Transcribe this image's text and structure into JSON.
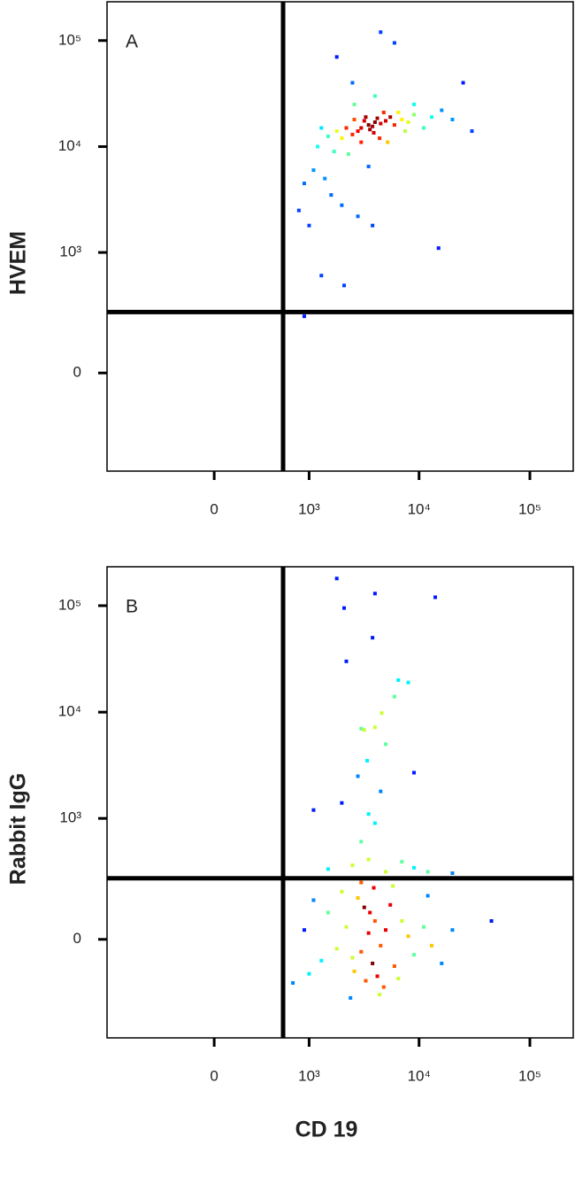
{
  "chart_data": [
    {
      "type": "scatter",
      "panel_label": "A",
      "ylabel": "HVEM",
      "colormap": "jet",
      "xlim": [
        -1300,
        246000
      ],
      "ylim": [
        -610,
        232000
      ],
      "xticks": [
        0,
        {
          "value": 1000,
          "label": "10³"
        },
        {
          "value": 10000,
          "label": "10⁴"
        },
        {
          "value": 100000,
          "label": "10⁵"
        }
      ],
      "yticks": [
        0,
        {
          "value": 1000,
          "label": "10³"
        },
        {
          "value": 10000,
          "label": "10⁴"
        },
        {
          "value": 100000,
          "label": "10⁵"
        }
      ],
      "gate": {
        "x": 560,
        "y": 256
      },
      "x": [
        3500,
        3000,
        4000,
        3800,
        3200,
        4500,
        2800,
        4200,
        3600,
        5000,
        2500,
        3300,
        5500,
        2200,
        6000,
        2000,
        4800,
        3900,
        2600,
        7000,
        1800,
        6500,
        1500,
        8000,
        1300,
        3000,
        4400,
        9000,
        11000,
        13000,
        1700,
        2300,
        1200,
        5200,
        7500,
        16000,
        20000,
        1100,
        1400,
        1600,
        2000,
        900,
        800,
        2800,
        3800,
        1000,
        4000,
        2500,
        6000,
        4500,
        1800,
        9000,
        15000,
        1300,
        2100,
        900,
        25000,
        30000,
        2600,
        3500
      ],
      "y": [
        16000,
        15000,
        17000,
        15500,
        17500,
        16500,
        14000,
        18500,
        14500,
        17500,
        13000,
        19000,
        19000,
        15000,
        16000,
        12000,
        21000,
        13500,
        18000,
        18000,
        14000,
        21000,
        12500,
        17000,
        15000,
        11000,
        12000,
        20000,
        15000,
        19000,
        9000,
        8500,
        10000,
        11000,
        14000,
        22000,
        18000,
        6000,
        5000,
        3500,
        2800,
        4500,
        2500,
        2200,
        1800,
        1800,
        30000,
        40000,
        95000,
        120000,
        70000,
        25000,
        1100,
        600,
        480,
        230,
        40000,
        14000,
        25000,
        6500
      ]
    },
    {
      "type": "scatter",
      "panel_label": "B",
      "ylabel": "Rabbit IgG",
      "xlabel": "CD 19",
      "colormap": "jet",
      "xlim": [
        -1300,
        246000
      ],
      "ylim": [
        -610,
        232000
      ],
      "xticks": [
        0,
        {
          "value": 1000,
          "label": "10³"
        },
        {
          "value": 10000,
          "label": "10⁴"
        },
        {
          "value": 100000,
          "label": "10⁵"
        }
      ],
      "yticks": [
        0,
        {
          "value": 1000,
          "label": "10³"
        },
        {
          "value": 10000,
          "label": "10⁴"
        },
        {
          "value": 100000,
          "label": "10⁵"
        }
      ],
      "gate": {
        "x": 560,
        "y": 256
      },
      "x": [
        3500,
        3000,
        4000,
        3800,
        3200,
        4500,
        2800,
        4200,
        3600,
        5000,
        2500,
        3300,
        5500,
        2200,
        6000,
        2000,
        4800,
        3900,
        2600,
        7000,
        1800,
        6500,
        1500,
        8000,
        1300,
        3000,
        4400,
        9000,
        11000,
        13000,
        1100,
        1000,
        900,
        12000,
        16000,
        20000,
        45000,
        2400,
        5800,
        700,
        1500,
        2500,
        3500,
        5000,
        7000,
        9000,
        12000,
        20000,
        3000,
        4000,
        2000,
        3500,
        4500,
        2800,
        3400,
        5000,
        3000,
        4000,
        6000,
        3800,
        6500,
        8000,
        2200,
        1800,
        2100,
        4000,
        14000,
        3200,
        4600,
        1100,
        9000
      ],
      "y": [
        20,
        -40,
        60,
        -80,
        110,
        -20,
        150,
        -130,
        90,
        30,
        -60,
        -150,
        120,
        40,
        -90,
        180,
        -180,
        200,
        -110,
        60,
        -30,
        -140,
        90,
        10,
        -70,
        230,
        -220,
        -50,
        40,
        -20,
        140,
        -120,
        30,
        160,
        -80,
        30,
        60,
        -240,
        210,
        -160,
        320,
        350,
        400,
        300,
        380,
        330,
        300,
        290,
        600,
        900,
        1400,
        1100,
        1800,
        2500,
        3500,
        5000,
        7000,
        7200,
        14000,
        50000,
        20000,
        19000,
        30000,
        180000,
        95000,
        130000,
        120000,
        6800,
        9800,
        1200,
        2700
      ]
    }
  ]
}
